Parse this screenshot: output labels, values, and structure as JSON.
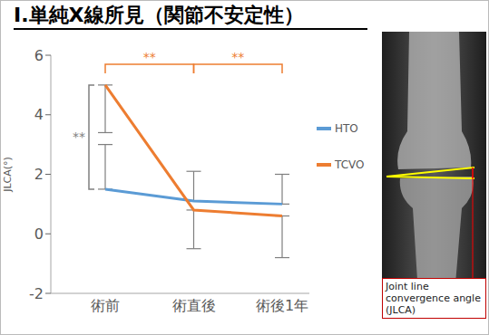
{
  "chart_data": {
    "type": "line",
    "title": "Ⅰ.単純X線所見（関節不安定性）",
    "y_label": "JLCA(°)",
    "categories": [
      "術前",
      "術直後",
      "術後1年"
    ],
    "series": [
      {
        "name": "HTO",
        "color": "#5b9bd5",
        "values": [
          1.5,
          1.1,
          1.0
        ],
        "error": [
          1.5,
          1.0,
          1.0
        ]
      },
      {
        "name": "TCVO",
        "color": "#ed7d31",
        "values": [
          5.0,
          0.8,
          0.6
        ],
        "error": [
          1.6,
          1.3,
          1.4
        ]
      }
    ],
    "ylim": [
      -2,
      6
    ],
    "yticks": [
      -2,
      0,
      2,
      4,
      6
    ],
    "grid": false,
    "legend": "right",
    "annotations": [
      {
        "text": "**",
        "between": [
          "術前",
          "術直後"
        ],
        "series": "TCVO"
      },
      {
        "text": "**",
        "between": [
          "術直後",
          "術後1年"
        ],
        "series": "TCVO"
      },
      {
        "text": "**",
        "between": [
          "HTO",
          "TCVO"
        ],
        "category": "術前"
      }
    ]
  },
  "image": {
    "caption": "Joint line convergence angle (JLCA)"
  }
}
